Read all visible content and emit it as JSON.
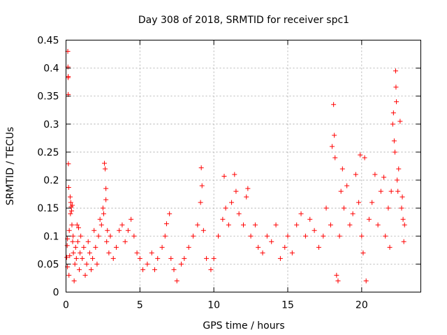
{
  "chart_data": {
    "type": "scatter",
    "title": "Day 308 of 2018, SRMTID for receiver spc1",
    "xlabel": "GPS time / hours",
    "ylabel": "SRMTID / TECUs",
    "xlim": [
      0,
      24
    ],
    "ylim": [
      0,
      0.45
    ],
    "x_ticks": [
      0,
      5,
      10,
      15,
      20
    ],
    "x_tick_labels": [
      "0",
      "5",
      "10",
      "15",
      "20"
    ],
    "y_ticks": [
      0,
      0.05,
      0.1,
      0.15,
      0.2,
      0.25,
      0.3,
      0.35,
      0.4,
      0.45
    ],
    "y_tick_labels": [
      "0",
      "0.05",
      "0.1",
      "0.15",
      "0.2",
      "0.25",
      "0.3",
      "0.35",
      "0.4",
      "0.45"
    ],
    "grid": true,
    "marker": "plus",
    "color": "#ff0000",
    "series": [
      {
        "name": "SRMTID",
        "points": [
          [
            0.05,
            0.062
          ],
          [
            0.08,
            0.083
          ],
          [
            0.1,
            0.045
          ],
          [
            0.1,
            0.095
          ],
          [
            0.12,
            0.43
          ],
          [
            0.13,
            0.402
          ],
          [
            0.14,
            0.383
          ],
          [
            0.15,
            0.353
          ],
          [
            0.15,
            0.385
          ],
          [
            0.16,
            0.229
          ],
          [
            0.18,
            0.187
          ],
          [
            0.2,
            0.03
          ],
          [
            0.22,
            0.11
          ],
          [
            0.25,
            0.065
          ],
          [
            0.28,
            0.17
          ],
          [
            0.3,
            0.14
          ],
          [
            0.32,
            0.16
          ],
          [
            0.35,
            0.152
          ],
          [
            0.38,
            0.145
          ],
          [
            0.4,
            0.12
          ],
          [
            0.42,
            0.155
          ],
          [
            0.45,
            0.09
          ],
          [
            0.48,
            0.1
          ],
          [
            0.5,
            0.07
          ],
          [
            0.55,
            0.02
          ],
          [
            0.6,
            0.05
          ],
          [
            0.65,
            0.08
          ],
          [
            0.7,
            0.06
          ],
          [
            0.75,
            0.12
          ],
          [
            0.8,
            0.09
          ],
          [
            0.85,
            0.115
          ],
          [
            0.9,
            0.04
          ],
          [
            0.95,
            0.07
          ],
          [
            1.0,
            0.1
          ],
          [
            1.1,
            0.06
          ],
          [
            1.2,
            0.08
          ],
          [
            1.3,
            0.03
          ],
          [
            1.4,
            0.05
          ],
          [
            1.5,
            0.09
          ],
          [
            1.6,
            0.07
          ],
          [
            1.7,
            0.04
          ],
          [
            1.8,
            0.06
          ],
          [
            1.9,
            0.11
          ],
          [
            2.0,
            0.08
          ],
          [
            2.1,
            0.05
          ],
          [
            2.2,
            0.1
          ],
          [
            2.3,
            0.13
          ],
          [
            2.4,
            0.12
          ],
          [
            2.5,
            0.15
          ],
          [
            2.55,
            0.14
          ],
          [
            2.6,
            0.23
          ],
          [
            2.65,
            0.22
          ],
          [
            2.7,
            0.185
          ],
          [
            2.7,
            0.165
          ],
          [
            2.75,
            0.09
          ],
          [
            2.8,
            0.11
          ],
          [
            2.9,
            0.07
          ],
          [
            3.0,
            0.1
          ],
          [
            3.2,
            0.06
          ],
          [
            3.4,
            0.08
          ],
          [
            3.6,
            0.11
          ],
          [
            3.8,
            0.12
          ],
          [
            4.0,
            0.09
          ],
          [
            4.2,
            0.11
          ],
          [
            4.4,
            0.13
          ],
          [
            4.6,
            0.1
          ],
          [
            4.8,
            0.07
          ],
          [
            5.0,
            0.06
          ],
          [
            5.2,
            0.04
          ],
          [
            5.5,
            0.05
          ],
          [
            5.8,
            0.07
          ],
          [
            6.0,
            0.04
          ],
          [
            6.2,
            0.06
          ],
          [
            6.5,
            0.08
          ],
          [
            6.7,
            0.1
          ],
          [
            6.8,
            0.122
          ],
          [
            7.0,
            0.14
          ],
          [
            7.1,
            0.06
          ],
          [
            7.3,
            0.04
          ],
          [
            7.5,
            0.02
          ],
          [
            7.8,
            0.05
          ],
          [
            8.0,
            0.06
          ],
          [
            8.3,
            0.08
          ],
          [
            8.6,
            0.1
          ],
          [
            8.9,
            0.12
          ],
          [
            9.1,
            0.16
          ],
          [
            9.15,
            0.222
          ],
          [
            9.2,
            0.19
          ],
          [
            9.3,
            0.11
          ],
          [
            9.5,
            0.06
          ],
          [
            9.8,
            0.04
          ],
          [
            10.0,
            0.06
          ],
          [
            10.3,
            0.1
          ],
          [
            10.6,
            0.13
          ],
          [
            10.7,
            0.207
          ],
          [
            10.8,
            0.15
          ],
          [
            11.0,
            0.12
          ],
          [
            11.2,
            0.16
          ],
          [
            11.4,
            0.21
          ],
          [
            11.5,
            0.18
          ],
          [
            11.7,
            0.14
          ],
          [
            12.0,
            0.12
          ],
          [
            12.2,
            0.17
          ],
          [
            12.3,
            0.185
          ],
          [
            12.5,
            0.1
          ],
          [
            12.8,
            0.12
          ],
          [
            13.0,
            0.08
          ],
          [
            13.3,
            0.07
          ],
          [
            13.6,
            0.1
          ],
          [
            13.9,
            0.09
          ],
          [
            14.2,
            0.12
          ],
          [
            14.5,
            0.06
          ],
          [
            14.8,
            0.08
          ],
          [
            15.0,
            0.1
          ],
          [
            15.3,
            0.07
          ],
          [
            15.6,
            0.12
          ],
          [
            15.9,
            0.14
          ],
          [
            16.2,
            0.1
          ],
          [
            16.5,
            0.13
          ],
          [
            16.8,
            0.11
          ],
          [
            17.1,
            0.08
          ],
          [
            17.4,
            0.1
          ],
          [
            17.6,
            0.15
          ],
          [
            17.9,
            0.12
          ],
          [
            18.0,
            0.26
          ],
          [
            18.1,
            0.335
          ],
          [
            18.15,
            0.28
          ],
          [
            18.2,
            0.24
          ],
          [
            18.3,
            0.03
          ],
          [
            18.4,
            0.02
          ],
          [
            18.5,
            0.1
          ],
          [
            18.6,
            0.18
          ],
          [
            18.7,
            0.22
          ],
          [
            18.8,
            0.15
          ],
          [
            19.0,
            0.19
          ],
          [
            19.2,
            0.12
          ],
          [
            19.4,
            0.14
          ],
          [
            19.6,
            0.21
          ],
          [
            19.8,
            0.16
          ],
          [
            19.9,
            0.245
          ],
          [
            20.0,
            0.1
          ],
          [
            20.1,
            0.07
          ],
          [
            20.2,
            0.24
          ],
          [
            20.3,
            0.02
          ],
          [
            20.5,
            0.13
          ],
          [
            20.7,
            0.16
          ],
          [
            20.9,
            0.21
          ],
          [
            21.1,
            0.12
          ],
          [
            21.3,
            0.18
          ],
          [
            21.5,
            0.205
          ],
          [
            21.6,
            0.1
          ],
          [
            21.8,
            0.15
          ],
          [
            21.9,
            0.08
          ],
          [
            22.0,
            0.18
          ],
          [
            22.1,
            0.3
          ],
          [
            22.15,
            0.32
          ],
          [
            22.2,
            0.27
          ],
          [
            22.25,
            0.25
          ],
          [
            22.3,
            0.395
          ],
          [
            22.32,
            0.366
          ],
          [
            22.35,
            0.34
          ],
          [
            22.4,
            0.2
          ],
          [
            22.45,
            0.18
          ],
          [
            22.5,
            0.22
          ],
          [
            22.6,
            0.305
          ],
          [
            22.7,
            0.15
          ],
          [
            22.75,
            0.17
          ],
          [
            22.8,
            0.13
          ],
          [
            22.85,
            0.09
          ],
          [
            22.9,
            0.12
          ]
        ]
      }
    ]
  }
}
